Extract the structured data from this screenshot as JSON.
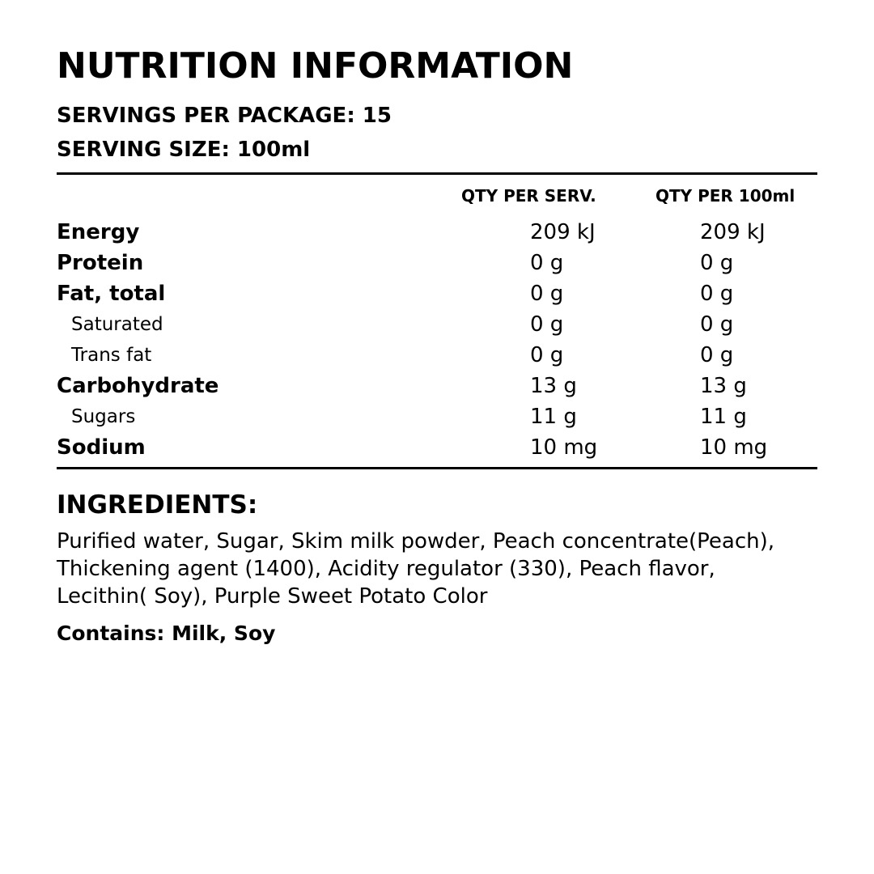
{
  "header": {
    "title": "NUTRITION INFORMATION",
    "servings": "SERVINGS PER PACKAGE: 15",
    "serving_size": "SERVING SIZE: 100ml"
  },
  "table": {
    "columns": [
      "QTY PER SERV.",
      "QTY PER 100ml"
    ],
    "rows": [
      {
        "label": "Energy",
        "bold": true,
        "serv": "209 kJ",
        "per100": "209 kJ"
      },
      {
        "label": "Protein",
        "bold": true,
        "serv": "0 g",
        "per100": "0 g"
      },
      {
        "label": "Fat, total",
        "bold": true,
        "serv": "0 g",
        "per100": "0 g"
      },
      {
        "label": "Saturated",
        "bold": false,
        "serv": "0 g",
        "per100": "0 g"
      },
      {
        "label": "Trans fat",
        "bold": false,
        "serv": "0 g",
        "per100": "0 g"
      },
      {
        "label": "Carbohydrate",
        "bold": true,
        "serv": "13 g",
        "per100": "13 g"
      },
      {
        "label": "Sugars",
        "bold": false,
        "serv": "11 g",
        "per100": "11 g"
      },
      {
        "label": "Sodium",
        "bold": true,
        "serv": "10 mg",
        "per100": "10 mg"
      }
    ]
  },
  "ingredients": {
    "heading": "INGREDIENTS:",
    "lines": [
      "Purified water, Sugar, Skim milk powder, Peach concentrate(Peach),",
      "Thickening agent (1400), Acidity regulator (330), Peach flavor,",
      "Lecithin( Soy), Purple Sweet Potato Color"
    ],
    "contains": "Contains: Milk, Soy"
  }
}
